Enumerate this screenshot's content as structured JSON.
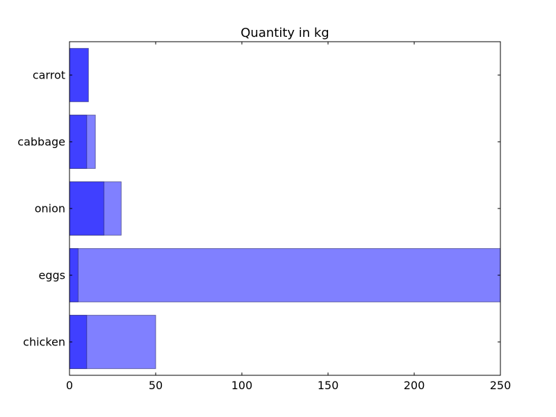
{
  "chart_data": {
    "type": "bar",
    "orientation": "horizontal",
    "title": "Quantity in kg",
    "categories": [
      "chicken",
      "eggs",
      "onion",
      "cabbage",
      "carrot"
    ],
    "series": [
      {
        "values": [
          50,
          250,
          30,
          15,
          0
        ],
        "color": "#8080ff"
      },
      {
        "values": [
          10,
          5,
          20,
          10,
          11
        ],
        "color": "#4040ff"
      }
    ],
    "xlim": [
      0,
      250
    ],
    "xticks": [
      0,
      50,
      100,
      150,
      200,
      250
    ],
    "grid": false,
    "legend": "none"
  }
}
